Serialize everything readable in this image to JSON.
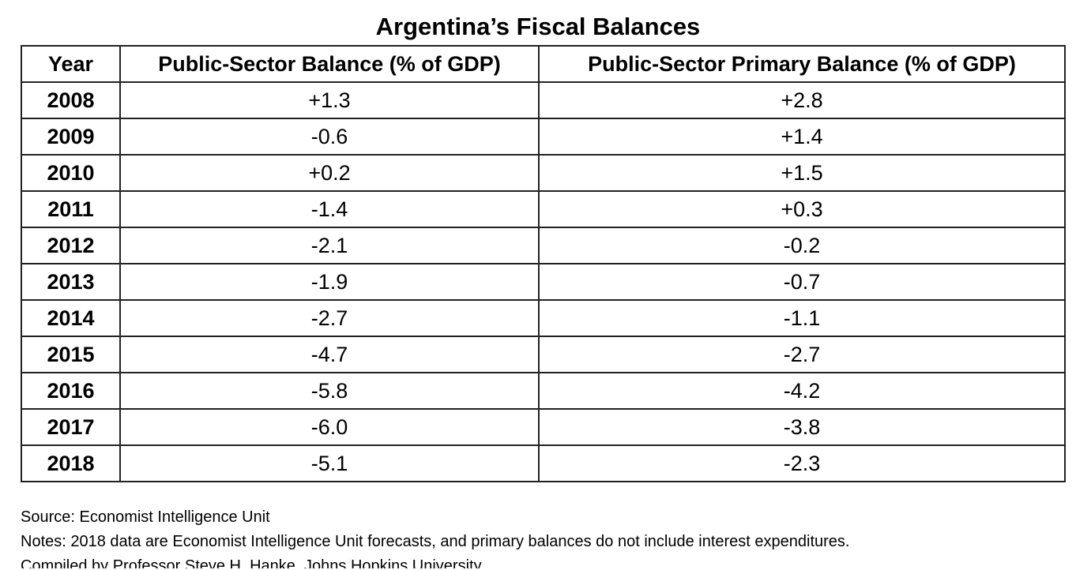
{
  "chart_data": {
    "type": "table",
    "title": "Argentina’s Fiscal Balances",
    "columns": [
      "Year",
      "Public-Sector Balance (% of GDP)",
      "Public-Sector Primary Balance (% of GDP)"
    ],
    "rows": [
      [
        "2008",
        "+1.3",
        "+2.8"
      ],
      [
        "2009",
        "-0.6",
        "+1.4"
      ],
      [
        "2010",
        "+0.2",
        "+1.5"
      ],
      [
        "2011",
        "-1.4",
        "+0.3"
      ],
      [
        "2012",
        "-2.1",
        "-0.2"
      ],
      [
        "2013",
        "-1.9",
        "-0.7"
      ],
      [
        "2014",
        "-2.7",
        "-1.1"
      ],
      [
        "2015",
        "-4.7",
        "-2.7"
      ],
      [
        "2016",
        "-5.8",
        "-4.2"
      ],
      [
        "2017",
        "-6.0",
        "-3.8"
      ],
      [
        "2018",
        "-5.1",
        "-2.3"
      ]
    ]
  },
  "footnotes": {
    "source": "Source: Economist Intelligence Unit",
    "notes": "Notes: 2018 data are Economist Intelligence Unit forecasts, and primary balances do not include interest expenditures.",
    "compiled": "Compiled by Professor Steve H. Hanke, Johns Hopkins University"
  }
}
